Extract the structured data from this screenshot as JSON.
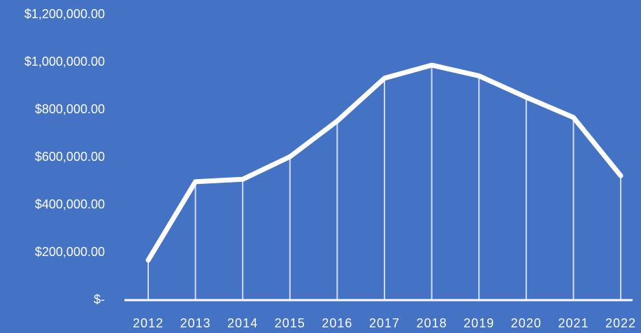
{
  "chart_data": {
    "type": "line",
    "title": "",
    "xlabel": "",
    "ylabel": "",
    "categories": [
      "2012",
      "2013",
      "2014",
      "2015",
      "2016",
      "2017",
      "2018",
      "2019",
      "2020",
      "2021",
      "2022"
    ],
    "series": [
      {
        "values": [
          165000,
          495000,
          505000,
          600000,
          750000,
          930000,
          985000,
          940000,
          850000,
          765000,
          520000
        ]
      }
    ],
    "ylim": [
      0,
      1200000
    ],
    "yticks": [
      0,
      200000,
      400000,
      600000,
      800000,
      1000000,
      1200000
    ],
    "ytick_labels": [
      "$-",
      "$200,000.00",
      "$400,000.00",
      "$600,000.00",
      "$800,000.00",
      "$1,000,000.00",
      "$1,200,000.00"
    ],
    "drop_lines": true,
    "grid": false,
    "legend": "none",
    "colors": {
      "background": "#4472C4",
      "line": "#FFFFFF",
      "text": "#FFFFFF",
      "axis": "#FFFFFF"
    }
  }
}
